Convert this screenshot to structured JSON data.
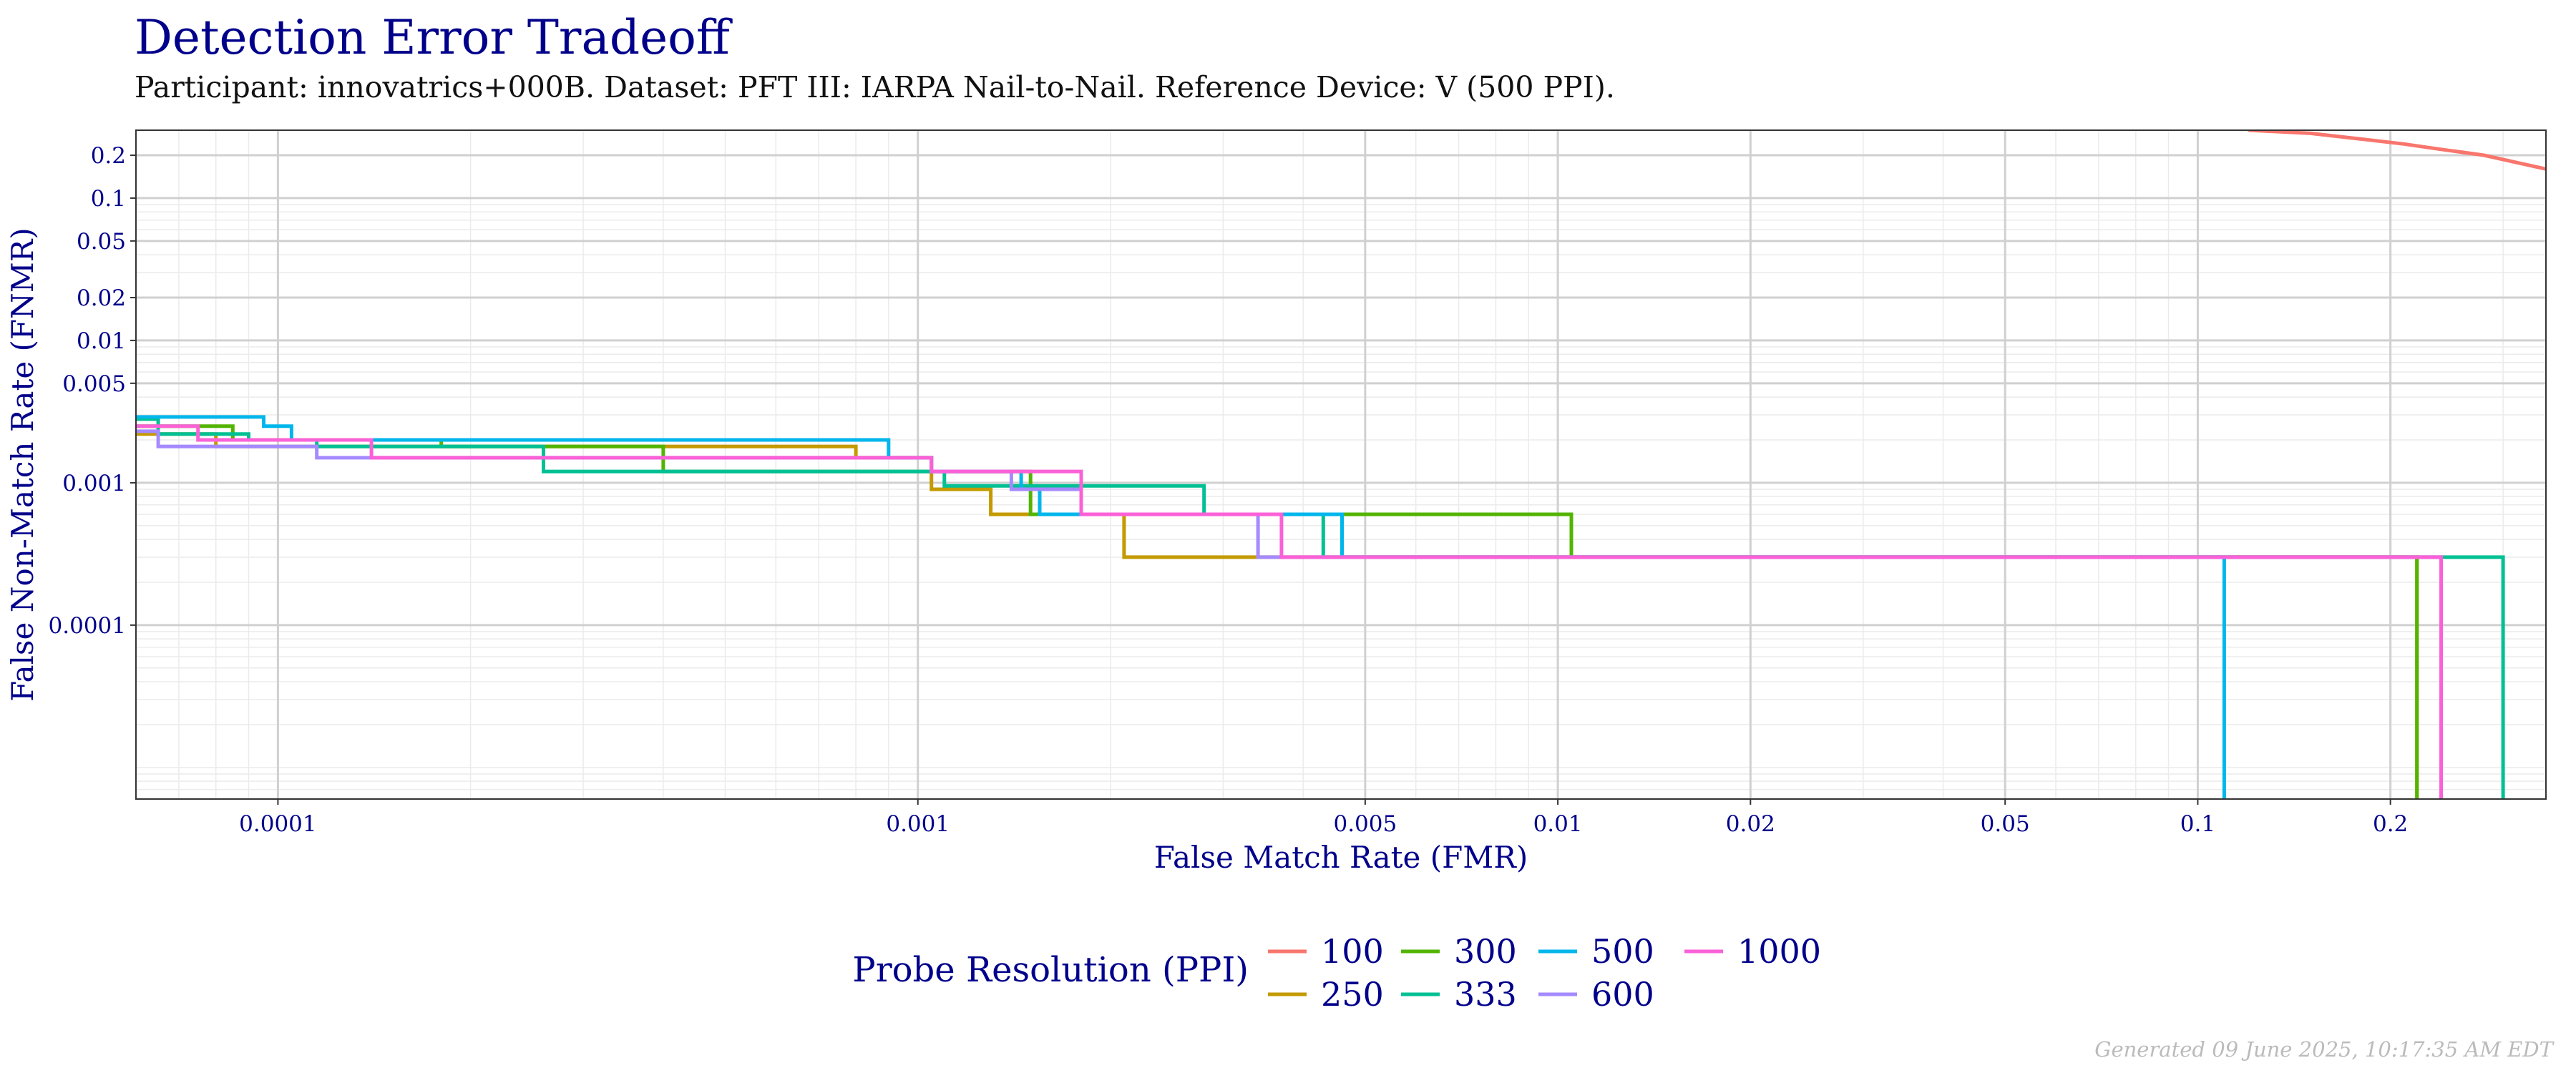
{
  "header": {
    "title": "Detection Error Tradeoff",
    "subtitle": "Participant: innovatrics+000B. Dataset: PFT III: IARPA Nail-to-Nail. Reference Device: V (500 PPI)."
  },
  "footer": {
    "generated": "Generated 09 June 2025, 10:17:35 AM EDT"
  },
  "chart_data": {
    "type": "line",
    "title": "Detection Error Tradeoff",
    "xlabel": "False Match Rate (FMR)",
    "ylabel": "False Non-Match Rate (FNMR)",
    "xscale": "log",
    "yscale": "log",
    "xlim": [
      6e-05,
      0.35
    ],
    "ylim": [
      6e-06,
      0.3
    ],
    "grid": true,
    "legend_position": "bottom",
    "legend_title": "Probe Resolution (PPI)",
    "x_ticks": [
      {
        "value": 0.0001,
        "label": "0.0001"
      },
      {
        "value": 0.001,
        "label": "0.001"
      },
      {
        "value": 0.005,
        "label": "0.005"
      },
      {
        "value": 0.01,
        "label": "0.01"
      },
      {
        "value": 0.02,
        "label": "0.02"
      },
      {
        "value": 0.05,
        "label": "0.05"
      },
      {
        "value": 0.1,
        "label": "0.1"
      },
      {
        "value": 0.2,
        "label": "0.2"
      }
    ],
    "y_ticks": [
      {
        "value": 0.0001,
        "label": "0.0001"
      },
      {
        "value": 0.001,
        "label": "0.001"
      },
      {
        "value": 0.005,
        "label": "0.005"
      },
      {
        "value": 0.01,
        "label": "0.01"
      },
      {
        "value": 0.02,
        "label": "0.02"
      },
      {
        "value": 0.05,
        "label": "0.05"
      },
      {
        "value": 0.1,
        "label": "0.1"
      },
      {
        "value": 0.2,
        "label": "0.2"
      }
    ],
    "series": [
      {
        "name": "100",
        "color": "#F8766D",
        "step": false,
        "points": [
          [
            0.12,
            0.3
          ],
          [
            0.15,
            0.285
          ],
          [
            0.18,
            0.26
          ],
          [
            0.21,
            0.24
          ],
          [
            0.24,
            0.22
          ],
          [
            0.28,
            0.2
          ],
          [
            0.32,
            0.175
          ],
          [
            0.35,
            0.16
          ]
        ]
      },
      {
        "name": "250",
        "color": "#C49A00",
        "step": true,
        "points": [
          [
            6e-05,
            0.0022
          ],
          [
            8e-05,
            0.0022
          ],
          [
            8e-05,
            0.0018
          ],
          [
            0.0008,
            0.0018
          ],
          [
            0.0008,
            0.0015
          ],
          [
            0.00105,
            0.0015
          ],
          [
            0.00105,
            0.0009
          ],
          [
            0.0013,
            0.0009
          ],
          [
            0.0013,
            0.0006
          ],
          [
            0.0021,
            0.0006
          ],
          [
            0.0021,
            0.0003
          ],
          [
            0.22,
            0.0003
          ],
          [
            0.22,
            6e-06
          ]
        ]
      },
      {
        "name": "300",
        "color": "#53B400",
        "step": true,
        "points": [
          [
            6e-05,
            0.0025
          ],
          [
            8.5e-05,
            0.0025
          ],
          [
            8.5e-05,
            0.002
          ],
          [
            0.00018,
            0.002
          ],
          [
            0.00018,
            0.0018
          ],
          [
            0.0004,
            0.0018
          ],
          [
            0.0004,
            0.0012
          ],
          [
            0.0015,
            0.0012
          ],
          [
            0.0015,
            0.0006
          ],
          [
            0.0105,
            0.0006
          ],
          [
            0.0105,
            0.0003
          ],
          [
            0.22,
            0.0003
          ],
          [
            0.22,
            6e-06
          ]
        ]
      },
      {
        "name": "333",
        "color": "#00C094",
        "step": true,
        "points": [
          [
            6e-05,
            0.0028
          ],
          [
            6.5e-05,
            0.0028
          ],
          [
            6.5e-05,
            0.0022
          ],
          [
            9e-05,
            0.0022
          ],
          [
            9e-05,
            0.002
          ],
          [
            0.000115,
            0.002
          ],
          [
            0.000115,
            0.0018
          ],
          [
            0.00026,
            0.0018
          ],
          [
            0.00026,
            0.0012
          ],
          [
            0.0011,
            0.0012
          ],
          [
            0.0011,
            0.00095
          ],
          [
            0.0028,
            0.00095
          ],
          [
            0.0028,
            0.0006
          ],
          [
            0.0043,
            0.0006
          ],
          [
            0.0043,
            0.0003
          ],
          [
            0.3,
            0.0003
          ],
          [
            0.3,
            6e-06
          ]
        ]
      },
      {
        "name": "500",
        "color": "#00B6EB",
        "step": true,
        "points": [
          [
            6e-05,
            0.0029
          ],
          [
            9.5e-05,
            0.0029
          ],
          [
            9.5e-05,
            0.0025
          ],
          [
            0.000105,
            0.0025
          ],
          [
            0.000105,
            0.002
          ],
          [
            0.0009,
            0.002
          ],
          [
            0.0009,
            0.0015
          ],
          [
            0.00105,
            0.0015
          ],
          [
            0.00105,
            0.0012
          ],
          [
            0.00145,
            0.0012
          ],
          [
            0.00145,
            0.0009
          ],
          [
            0.00155,
            0.0009
          ],
          [
            0.00155,
            0.0006
          ],
          [
            0.0046,
            0.0006
          ],
          [
            0.0046,
            0.0003
          ],
          [
            0.11,
            0.0003
          ],
          [
            0.11,
            6e-06
          ]
        ]
      },
      {
        "name": "600",
        "color": "#A58AFF",
        "step": true,
        "points": [
          [
            6e-05,
            0.0023
          ],
          [
            6.5e-05,
            0.0023
          ],
          [
            6.5e-05,
            0.0018
          ],
          [
            0.000115,
            0.0018
          ],
          [
            0.000115,
            0.0015
          ],
          [
            0.00105,
            0.0015
          ],
          [
            0.00105,
            0.0012
          ],
          [
            0.0014,
            0.0012
          ],
          [
            0.0014,
            0.0009
          ],
          [
            0.0018,
            0.0009
          ],
          [
            0.0018,
            0.0006
          ],
          [
            0.0034,
            0.0006
          ],
          [
            0.0034,
            0.0003
          ],
          [
            0.24,
            0.0003
          ],
          [
            0.24,
            6e-06
          ]
        ]
      },
      {
        "name": "1000",
        "color": "#FB61D7",
        "step": true,
        "points": [
          [
            6e-05,
            0.0025
          ],
          [
            7.5e-05,
            0.0025
          ],
          [
            7.5e-05,
            0.002
          ],
          [
            0.00014,
            0.002
          ],
          [
            0.00014,
            0.0015
          ],
          [
            0.00105,
            0.0015
          ],
          [
            0.00105,
            0.0012
          ],
          [
            0.0018,
            0.0012
          ],
          [
            0.0018,
            0.0006
          ],
          [
            0.0037,
            0.0006
          ],
          [
            0.0037,
            0.0003
          ],
          [
            0.24,
            0.0003
          ],
          [
            0.24,
            6e-06
          ]
        ]
      }
    ]
  }
}
